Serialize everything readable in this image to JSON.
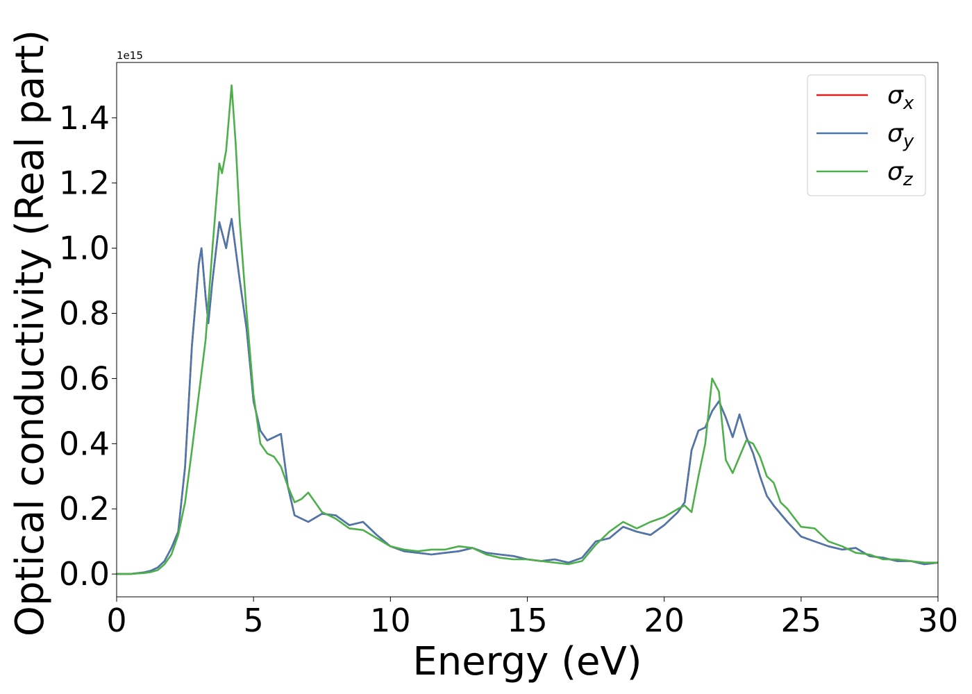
{
  "chart_data": {
    "type": "line",
    "xlabel": "Energy (eV)",
    "ylabel": "Optical conductivity (Real part)",
    "offset_text": "1e15",
    "xlim": [
      0,
      30
    ],
    "ylim": [
      -0.07,
      1.57
    ],
    "y_unit_multiplier": 1000000000000000.0,
    "xticks": [
      0,
      5,
      10,
      15,
      20,
      25,
      30
    ],
    "xtick_labels": [
      "0",
      "5",
      "10",
      "15",
      "20",
      "25",
      "30"
    ],
    "yticks": [
      0.0,
      0.2,
      0.4,
      0.6,
      0.8,
      1.0,
      1.2,
      1.4
    ],
    "ytick_labels": [
      "0.0",
      "0.2",
      "0.4",
      "0.6",
      "0.8",
      "1.0",
      "1.2",
      "1.4"
    ],
    "grid": false,
    "legend_position": "top-right",
    "series": [
      {
        "name": "σx",
        "base": "σ",
        "sub": "x",
        "color": "#e41a1c",
        "x": [
          0,
          0.5,
          1,
          1.25,
          1.5,
          1.75,
          2,
          2.25,
          2.5,
          2.75,
          3,
          3.1,
          3.25,
          3.35,
          3.5,
          3.75,
          4,
          4.1,
          4.2,
          4.5,
          4.75,
          5,
          5.25,
          5.5,
          5.75,
          6,
          6.25,
          6.5,
          7,
          7.5,
          8,
          8.5,
          9,
          9.5,
          10,
          10.5,
          11,
          11.5,
          12,
          12.5,
          13,
          13.5,
          14,
          14.5,
          15,
          15.5,
          16,
          16.5,
          17,
          17.5,
          18,
          18.5,
          19,
          19.5,
          20,
          20.5,
          20.75,
          21,
          21.25,
          21.5,
          21.75,
          22,
          22.25,
          22.5,
          22.75,
          23,
          23.25,
          23.5,
          23.75,
          24,
          24.5,
          25,
          25.5,
          26,
          26.5,
          27,
          27.5,
          28,
          28.5,
          29,
          29.5,
          30
        ],
        "y": [
          0,
          0,
          0.005,
          0.01,
          0.02,
          0.04,
          0.08,
          0.13,
          0.33,
          0.7,
          0.95,
          1.0,
          0.85,
          0.77,
          0.9,
          1.08,
          1.0,
          1.05,
          1.09,
          0.9,
          0.75,
          0.53,
          0.44,
          0.41,
          0.42,
          0.43,
          0.27,
          0.18,
          0.16,
          0.185,
          0.18,
          0.15,
          0.16,
          0.12,
          0.085,
          0.07,
          0.065,
          0.06,
          0.065,
          0.07,
          0.08,
          0.065,
          0.06,
          0.055,
          0.045,
          0.04,
          0.045,
          0.035,
          0.05,
          0.1,
          0.11,
          0.145,
          0.13,
          0.12,
          0.15,
          0.19,
          0.22,
          0.38,
          0.44,
          0.45,
          0.5,
          0.53,
          0.48,
          0.42,
          0.49,
          0.42,
          0.37,
          0.3,
          0.24,
          0.21,
          0.16,
          0.115,
          0.1,
          0.085,
          0.075,
          0.08,
          0.055,
          0.05,
          0.04,
          0.04,
          0.03,
          0.035
        ]
      },
      {
        "name": "σy",
        "base": "σ",
        "sub": "y",
        "color": "#4a78ad",
        "x": [
          0,
          0.5,
          1,
          1.25,
          1.5,
          1.75,
          2,
          2.25,
          2.5,
          2.75,
          3,
          3.1,
          3.25,
          3.35,
          3.5,
          3.75,
          4,
          4.1,
          4.2,
          4.5,
          4.75,
          5,
          5.25,
          5.5,
          5.75,
          6,
          6.25,
          6.5,
          7,
          7.5,
          8,
          8.5,
          9,
          9.5,
          10,
          10.5,
          11,
          11.5,
          12,
          12.5,
          13,
          13.5,
          14,
          14.5,
          15,
          15.5,
          16,
          16.5,
          17,
          17.5,
          18,
          18.5,
          19,
          19.5,
          20,
          20.5,
          20.75,
          21,
          21.25,
          21.5,
          21.75,
          22,
          22.25,
          22.5,
          22.75,
          23,
          23.25,
          23.5,
          23.75,
          24,
          24.5,
          25,
          25.5,
          26,
          26.5,
          27,
          27.5,
          28,
          28.5,
          29,
          29.5,
          30
        ],
        "y": [
          0,
          0,
          0.005,
          0.01,
          0.02,
          0.04,
          0.08,
          0.13,
          0.33,
          0.7,
          0.95,
          1.0,
          0.85,
          0.77,
          0.9,
          1.08,
          1.0,
          1.05,
          1.09,
          0.9,
          0.75,
          0.53,
          0.44,
          0.41,
          0.42,
          0.43,
          0.27,
          0.18,
          0.16,
          0.185,
          0.18,
          0.15,
          0.16,
          0.12,
          0.085,
          0.07,
          0.065,
          0.06,
          0.065,
          0.07,
          0.08,
          0.065,
          0.06,
          0.055,
          0.045,
          0.04,
          0.045,
          0.035,
          0.05,
          0.1,
          0.11,
          0.145,
          0.13,
          0.12,
          0.15,
          0.19,
          0.22,
          0.38,
          0.44,
          0.45,
          0.5,
          0.53,
          0.48,
          0.42,
          0.49,
          0.42,
          0.37,
          0.3,
          0.24,
          0.21,
          0.16,
          0.115,
          0.1,
          0.085,
          0.075,
          0.08,
          0.055,
          0.05,
          0.04,
          0.04,
          0.03,
          0.035
        ]
      },
      {
        "name": "σz",
        "base": "σ",
        "sub": "z",
        "color": "#4daf4a",
        "x": [
          0,
          0.5,
          1,
          1.25,
          1.5,
          1.75,
          2,
          2.25,
          2.5,
          2.75,
          3,
          3.25,
          3.5,
          3.75,
          3.85,
          4,
          4.1,
          4.2,
          4.35,
          4.5,
          4.75,
          5,
          5.25,
          5.5,
          5.75,
          6,
          6.25,
          6.5,
          6.75,
          7,
          7.25,
          7.5,
          8,
          8.5,
          9,
          9.5,
          10,
          10.5,
          11,
          11.5,
          12,
          12.5,
          13,
          13.5,
          14,
          14.5,
          15,
          15.5,
          16,
          16.5,
          17,
          17.5,
          18,
          18.5,
          19,
          19.5,
          20,
          20.5,
          20.75,
          21,
          21.25,
          21.5,
          21.75,
          22,
          22.25,
          22.5,
          22.75,
          23,
          23.25,
          23.5,
          23.75,
          24,
          24.25,
          24.5,
          25,
          25.5,
          26,
          26.5,
          27,
          27.5,
          28,
          28.5,
          29,
          29.5,
          30
        ],
        "y": [
          0,
          0,
          0.003,
          0.006,
          0.012,
          0.03,
          0.06,
          0.12,
          0.22,
          0.38,
          0.55,
          0.72,
          1.0,
          1.26,
          1.23,
          1.3,
          1.4,
          1.5,
          1.32,
          1.08,
          0.8,
          0.55,
          0.4,
          0.37,
          0.36,
          0.33,
          0.27,
          0.22,
          0.23,
          0.25,
          0.22,
          0.19,
          0.17,
          0.14,
          0.135,
          0.11,
          0.085,
          0.075,
          0.07,
          0.075,
          0.075,
          0.085,
          0.08,
          0.06,
          0.05,
          0.045,
          0.045,
          0.04,
          0.035,
          0.03,
          0.04,
          0.09,
          0.13,
          0.16,
          0.14,
          0.16,
          0.175,
          0.2,
          0.21,
          0.19,
          0.3,
          0.4,
          0.6,
          0.56,
          0.35,
          0.31,
          0.36,
          0.41,
          0.4,
          0.36,
          0.3,
          0.28,
          0.22,
          0.2,
          0.145,
          0.14,
          0.1,
          0.085,
          0.065,
          0.06,
          0.045,
          0.045,
          0.04,
          0.035,
          0.035
        ]
      }
    ]
  }
}
